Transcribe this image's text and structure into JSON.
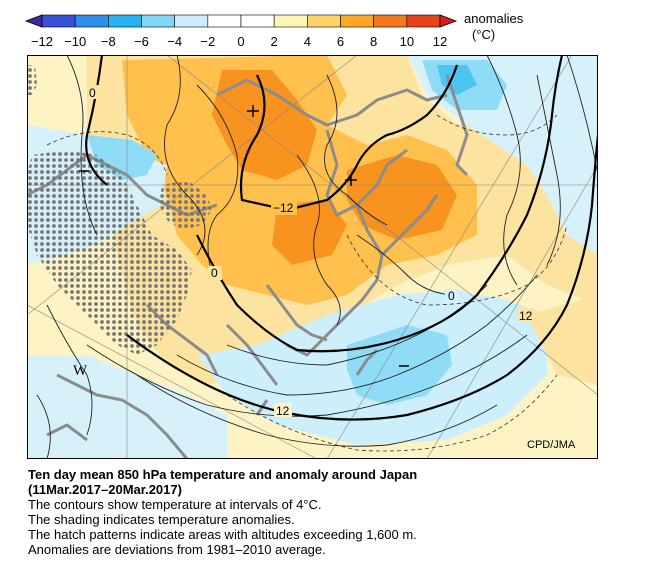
{
  "legend": {
    "title": "anomalies",
    "unit": "(°C)",
    "ticks": [
      "−12",
      "−10",
      "−8",
      "−6",
      "−4",
      "−2",
      "0",
      "2",
      "4",
      "6",
      "8",
      "10",
      "12"
    ],
    "colors": [
      "#3a4fd8",
      "#2f8fe8",
      "#27b3ef",
      "#7fd6f5",
      "#cdeefb",
      "#ffffff",
      "#ffffff",
      "#fff5b8",
      "#ffd36a",
      "#ffa726",
      "#f4791e",
      "#e8421a"
    ]
  },
  "map": {
    "credit": "CPD/JMA",
    "contour_labels": [
      "0",
      "−12",
      "0",
      "0",
      "12",
      "12"
    ],
    "letters": [
      "W"
    ],
    "anomaly_colors": {
      "warm_strong": "#f7931e",
      "warm": "#ffc04d",
      "warm_light": "#fde9a6",
      "neutral": "#fdf8d8",
      "cool_light": "#d7f1fb",
      "cool": "#8fdcf6",
      "cool_strong": "#4cc6f1"
    }
  },
  "caption": {
    "title_line1": "Ten day mean 850 hPa temperature and anomaly around Japan",
    "title_line2": "(11Mar.2017–20Mar.2017)",
    "line1": "The contours show temperature at intervals of 4°C.",
    "line2": "The shading indicates temperature anomalies.",
    "line3": "The hatch patterns indicate areas with altitudes exceeding 1,600 m.",
    "line4": "Anomalies are deviations from 1981–2010 average."
  }
}
